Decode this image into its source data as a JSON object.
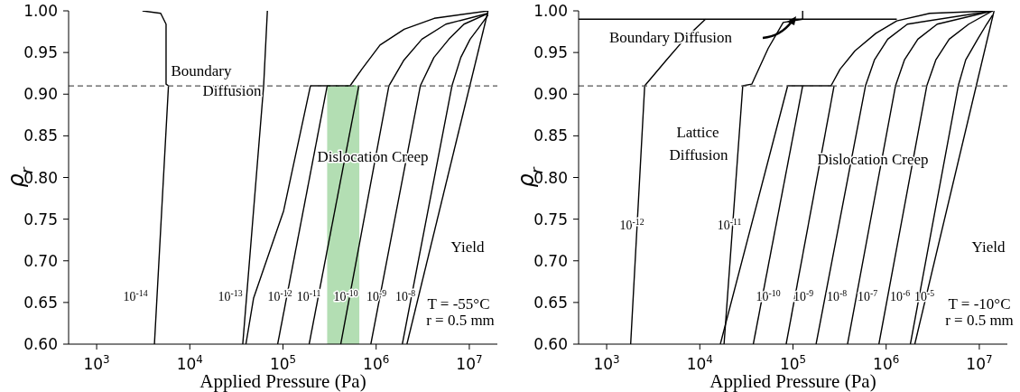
{
  "chart_data": [
    {
      "type": "line",
      "xlabel": "Applied Pressure (Pa)",
      "ylabel": "ρ$_{r}$",
      "log": "x",
      "xlim": [
        500,
        20000000
      ],
      "ylim": [
        0.6,
        1.0
      ],
      "xticks": [
        {
          "value": 1000,
          "label": "10$^{3}$"
        },
        {
          "value": 10000,
          "label": "10$^{4}$"
        },
        {
          "value": 100000,
          "label": "10$^{5}$"
        },
        {
          "value": 1000000,
          "label": "10$^{6}$"
        },
        {
          "value": 10000000,
          "label": "10$^{7}$"
        }
      ],
      "yticks": [
        {
          "value": 0.6,
          "label": "0.60"
        },
        {
          "value": 0.65,
          "label": "0.65"
        },
        {
          "value": 0.7,
          "label": "0.70"
        },
        {
          "value": 0.75,
          "label": "0.75"
        },
        {
          "value": 0.8,
          "label": "0.80"
        },
        {
          "value": 0.85,
          "label": "0.85"
        },
        {
          "value": 0.9,
          "label": "0.90"
        },
        {
          "value": 0.95,
          "label": "0.95"
        },
        {
          "value": 1.0,
          "label": "1.00"
        }
      ],
      "ref_lines": [
        {
          "axis": "y",
          "value": 0.91,
          "color": "#555555",
          "line_style": "dashed"
        }
      ],
      "series": [
        {
          "type": "area",
          "color": "#b3deb3",
          "x": [
            298000,
            660000
          ],
          "values": [
            0.91,
            0.91
          ]
        },
        {
          "color": "#000000",
          "x": [
            4170,
            5900,
            5560,
            5560,
            4870,
            3100
          ],
          "values": [
            0.6,
            0.91,
            0.912,
            0.984,
            0.997,
            1.0
          ]
        },
        {
          "color": "#000000",
          "x": [
            37000,
            62000,
            68000
          ],
          "values": [
            0.6,
            0.91,
            1.0
          ]
        },
        {
          "color": "#000000",
          "x": [
            40000,
            48300,
            101600,
            197000,
            525000,
            702000,
            1100000,
            2000000,
            4200000,
            16000000
          ],
          "values": [
            0.6,
            0.655,
            0.76,
            0.91,
            0.91,
            0.93,
            0.959,
            0.978,
            0.991,
            1.0
          ]
        },
        {
          "color": "#000000",
          "x": [
            2140000,
            15900000
          ],
          "values": [
            0.6,
            1.0
          ]
        },
        {
          "color": "#000000",
          "x": [
            87700,
            298000
          ],
          "values": [
            0.6,
            0.91
          ]
        },
        {
          "color": "#000000",
          "x": [
            191000,
            651000
          ],
          "values": [
            0.6,
            0.91
          ]
        },
        {
          "color": "#000000",
          "x": [
            417000,
            1370000,
            1990000,
            3100000,
            5600000,
            15900000
          ],
          "values": [
            0.6,
            0.91,
            0.941,
            0.966,
            0.984,
            0.997
          ]
        },
        {
          "color": "#000000",
          "x": [
            877000,
            2980000,
            4170000,
            6040000,
            8770000,
            15900000
          ],
          "values": [
            0.6,
            0.91,
            0.944,
            0.966,
            0.984,
            0.997
          ]
        },
        {
          "color": "#000000",
          "x": [
            1910000,
            6510000,
            8100000,
            10200000,
            12700000,
            15900000
          ],
          "values": [
            0.6,
            0.91,
            0.944,
            0.966,
            0.98,
            0.995
          ]
        }
      ],
      "annotations": [
        "Boundary",
        "Diffusion",
        "Dislocation Creep",
        "Yield",
        "T = -55°C",
        "r = 0.5 mm",
        "10$^{-14}$",
        "10$^{-13}$",
        "10$^{-12}$",
        "10$^{-11}$",
        "10$^{-10}$",
        "10$^{-9}$",
        "10$^{-8}$"
      ]
    },
    {
      "type": "line",
      "xlabel": "Applied Pressure (Pa)",
      "ylabel": "ρ$_{r}$",
      "log": "x",
      "xlim": [
        500,
        20000000
      ],
      "ylim": [
        0.6,
        1.0
      ],
      "xticks": [
        {
          "value": 1000,
          "label": "10$^{3}$"
        },
        {
          "value": 10000,
          "label": "10$^{4}$"
        },
        {
          "value": 100000,
          "label": "10$^{5}$"
        },
        {
          "value": 1000000,
          "label": "10$^{6}$"
        },
        {
          "value": 10000000,
          "label": "10$^{7}$"
        }
      ],
      "yticks": [
        {
          "value": 0.6,
          "label": "0.60"
        },
        {
          "value": 0.65,
          "label": "0.65"
        },
        {
          "value": 0.7,
          "label": "0.70"
        },
        {
          "value": 0.75,
          "label": "0.75"
        },
        {
          "value": 0.8,
          "label": "0.80"
        },
        {
          "value": 0.85,
          "label": "0.85"
        },
        {
          "value": 0.9,
          "label": "0.90"
        },
        {
          "value": 0.95,
          "label": "0.95"
        },
        {
          "value": 1.0,
          "label": "1.00"
        }
      ],
      "ref_lines": [
        {
          "axis": "y",
          "value": 0.91,
          "color": "#555555",
          "line_style": "dashed"
        }
      ],
      "series": [
        {
          "color": "#000000",
          "x": [
            500,
            1300000
          ],
          "values": [
            0.99,
            0.99
          ]
        },
        {
          "color": "#000000",
          "x": [
            16600,
            87700,
            256000,
            320000,
            463000,
            776000,
            1300000,
            2940000,
            13900000
          ],
          "values": [
            0.6,
            0.91,
            0.91,
            0.93,
            0.952,
            0.973,
            0.988,
            0.997,
            1.0
          ]
        },
        {
          "color": "#000000",
          "x": [
            2030000,
            14400000
          ],
          "values": [
            0.6,
            1.0
          ]
        },
        {
          "color": "#000000",
          "x": [
            1810,
            2560,
            4380,
            6840,
            11500
          ],
          "values": [
            0.6,
            0.91,
            0.941,
            0.966,
            0.99
          ]
        },
        {
          "color": "#000000",
          "x": [
            18200,
            28900,
            36100,
            54200,
            78500,
            127000,
            127000
          ],
          "values": [
            0.6,
            0.91,
            0.912,
            0.955,
            0.986,
            0.99,
            1.0
          ]
        },
        {
          "color": "#000000",
          "x": [
            37500,
            127000
          ],
          "values": [
            0.6,
            0.91
          ]
        },
        {
          "color": "#000000",
          "x": [
            84500,
            276000
          ],
          "values": [
            0.6,
            0.91
          ]
        },
        {
          "color": "#000000",
          "x": [
            177000,
            600000,
            748000,
            1040000,
            1690000,
            13900000
          ],
          "values": [
            0.6,
            0.91,
            0.941,
            0.966,
            0.984,
            1.0
          ]
        },
        {
          "color": "#000000",
          "x": [
            385000,
            1260000,
            1570000,
            2190000,
            3530000,
            13900000
          ],
          "values": [
            0.6,
            0.91,
            0.941,
            0.966,
            0.984,
            1.0
          ]
        },
        {
          "color": "#000000",
          "x": [
            836000,
            2730000,
            3410000,
            4750000,
            7690000,
            13900000
          ],
          "values": [
            0.6,
            0.91,
            0.941,
            0.966,
            0.984,
            1.0
          ]
        },
        {
          "color": "#000000",
          "x": [
            1820000,
            5940000,
            7140000,
            9600000,
            12000000,
            13900000
          ],
          "values": [
            0.6,
            0.91,
            0.941,
            0.966,
            0.984,
            0.995
          ]
        }
      ],
      "annotations": [
        "Boundary Diffusion",
        "Lattice",
        "Diffusion",
        "Dislocation Creep",
        "Yield",
        "T = -10°C",
        "r = 0.5 mm",
        "10$^{-12}$",
        "10$^{-11}$",
        "10$^{-10}$",
        "10$^{-9}$",
        "10$^{-8}$",
        "10$^{-7}$",
        "10$^{-6}$",
        "10$^{-5}$"
      ]
    }
  ]
}
